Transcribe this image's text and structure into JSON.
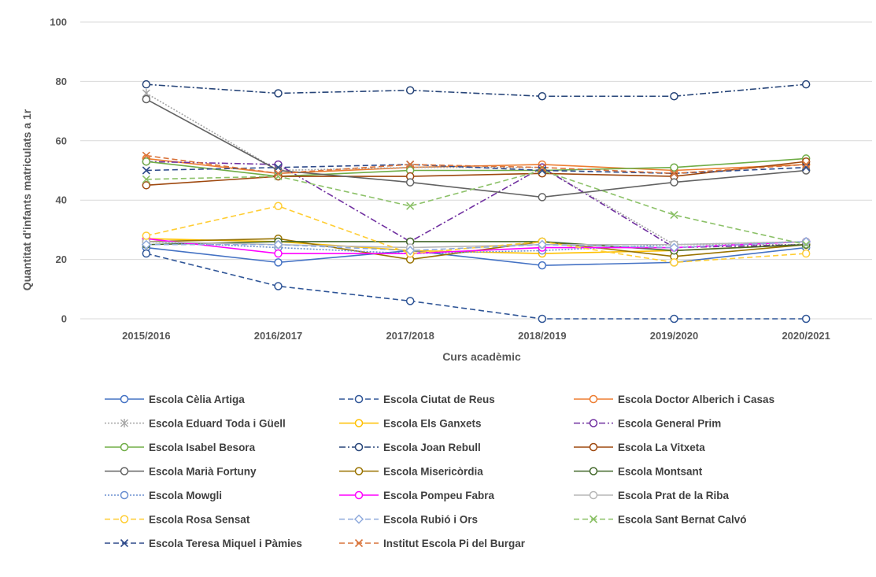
{
  "chart_data": {
    "type": "line",
    "xlabel": "Curs acadèmic",
    "ylabel": "Quantitat d'infants matriculats a 1r",
    "ylim": [
      0,
      100
    ],
    "yticks": [
      0,
      20,
      40,
      60,
      80,
      100
    ],
    "grid": true,
    "legend_position": "bottom",
    "categories": [
      "2015/2016",
      "2016/2017",
      "2017/2018",
      "2018/2019",
      "2019/2020",
      "2020/2021"
    ],
    "series": [
      {
        "name": "Escola Cèlia Artiga",
        "values": [
          24,
          19,
          23,
          18,
          19,
          24
        ],
        "color": "#4472C4",
        "dash": "solid",
        "marker": "circle"
      },
      {
        "name": "Escola Ciutat de Reus",
        "values": [
          22,
          11,
          6,
          0,
          0,
          0
        ],
        "color": "#2F5597",
        "dash": "dash",
        "marker": "circle"
      },
      {
        "name": "Escola Doctor Alberich i Casas",
        "values": [
          54,
          49,
          51,
          52,
          50,
          52
        ],
        "color": "#ED7D31",
        "dash": "solid",
        "marker": "circle"
      },
      {
        "name": "Escola Eduard Toda i Güell",
        "values": [
          76,
          50,
          51,
          51,
          25,
          25
        ],
        "color": "#A5A5A5",
        "dash": "dot",
        "marker": "star"
      },
      {
        "name": "Escola Els Ganxets",
        "values": [
          27,
          26,
          23,
          22,
          23,
          25
        ],
        "color": "#FFC000",
        "dash": "solid",
        "marker": "circle"
      },
      {
        "name": "Escola General Prim",
        "values": [
          53,
          52,
          26,
          51,
          24,
          25
        ],
        "color": "#7030A0",
        "dash": "dashdot",
        "marker": "circle"
      },
      {
        "name": "Escola Isabel Besora",
        "values": [
          53,
          48,
          50,
          50,
          51,
          54
        ],
        "color": "#70AD47",
        "dash": "solid",
        "marker": "circle"
      },
      {
        "name": "Escola Joan Rebull",
        "values": [
          79,
          76,
          77,
          75,
          75,
          79
        ],
        "color": "#264478",
        "dash": "dashdot",
        "marker": "circle"
      },
      {
        "name": "Escola La Vitxeta",
        "values": [
          45,
          48,
          48,
          49,
          48,
          53
        ],
        "color": "#9E480E",
        "dash": "solid",
        "marker": "circle"
      },
      {
        "name": "Escola Marià Fortuny",
        "values": [
          74,
          50,
          46,
          41,
          46,
          50
        ],
        "color": "#636363",
        "dash": "solid",
        "marker": "circle"
      },
      {
        "name": "Escola Misericòrdia",
        "values": [
          26,
          27,
          20,
          26,
          21,
          25
        ],
        "color": "#997300",
        "dash": "solid",
        "marker": "circle"
      },
      {
        "name": "Escola Montsant",
        "values": [
          25,
          26,
          26,
          26,
          23,
          25
        ],
        "color": "#43682B",
        "dash": "solid",
        "marker": "circle"
      },
      {
        "name": "Escola Mowgli",
        "values": [
          26,
          24,
          22,
          23,
          25,
          26
        ],
        "color": "#698ED0",
        "dash": "dot",
        "marker": "circle"
      },
      {
        "name": "Escola Pompeu Fabra",
        "values": [
          27,
          22,
          22,
          24,
          24,
          26
        ],
        "color": "#FF00FF",
        "dash": "solid",
        "marker": "circle"
      },
      {
        "name": "Escola Prat de la Riba",
        "values": [
          26,
          25,
          24,
          25,
          25,
          26
        ],
        "color": "#B7B7B7",
        "dash": "solid",
        "marker": "circle"
      },
      {
        "name": "Escola Rosa Sensat",
        "values": [
          28,
          38,
          22,
          26,
          19,
          22
        ],
        "color": "#FFCD33",
        "dash": "dash",
        "marker": "circle"
      },
      {
        "name": "Escola Rubió i Ors",
        "values": [
          25,
          25,
          23,
          25,
          24,
          26
        ],
        "color": "#8FAADC",
        "dash": "dash",
        "marker": "diamond"
      },
      {
        "name": "Escola Sant Bernat Calvó",
        "values": [
          47,
          48,
          38,
          50,
          35,
          25
        ],
        "color": "#8CC168",
        "dash": "dash",
        "marker": "x"
      },
      {
        "name": "Escola Teresa Miquel i Pàmies",
        "values": [
          50,
          51,
          52,
          50,
          49,
          51
        ],
        "color": "#2E4A8A",
        "dash": "dash",
        "marker": "x"
      },
      {
        "name": "Institut Escola Pi del Burgar",
        "values": [
          55,
          49,
          52,
          51,
          49,
          52
        ],
        "color": "#D9733A",
        "dash": "dash",
        "marker": "x"
      }
    ]
  }
}
